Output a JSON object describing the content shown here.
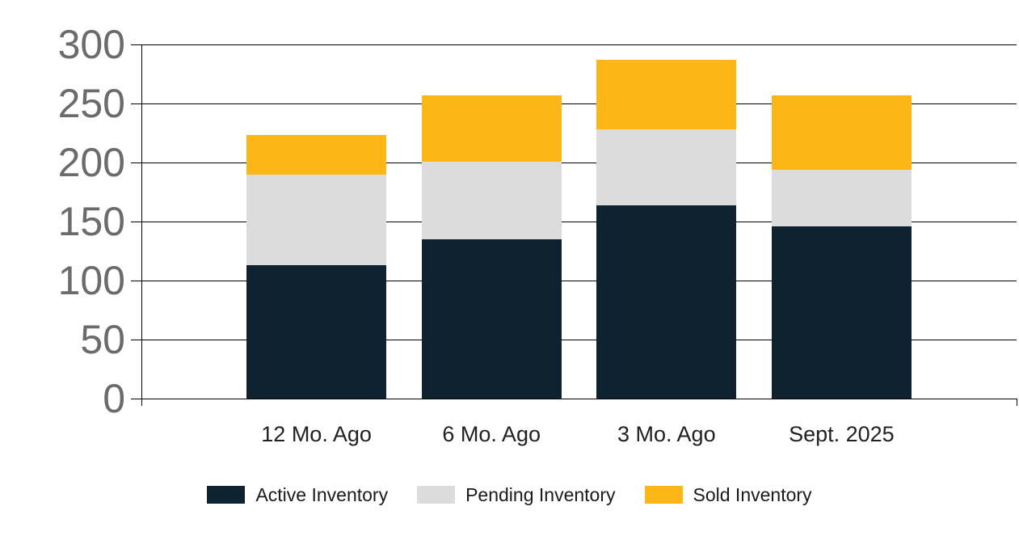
{
  "chart_data": {
    "type": "bar",
    "stacked": true,
    "title": "",
    "xlabel": "",
    "ylabel": "",
    "categories": [
      "12 Mo. Ago",
      "6 Mo. Ago",
      "3 Mo. Ago",
      "Sept. 2025"
    ],
    "series": [
      {
        "name": "Active Inventory",
        "color": "#0e2230",
        "values": [
          113,
          135,
          164,
          146
        ]
      },
      {
        "name": "Pending Inventory",
        "color": "#dcdcdc",
        "values": [
          77,
          66,
          64,
          48
        ]
      },
      {
        "name": "Sold Inventory",
        "color": "#fcb716",
        "values": [
          33,
          56,
          59,
          63
        ]
      }
    ],
    "stack_totals": [
      223,
      257,
      287,
      257
    ],
    "ylim": [
      0,
      300
    ],
    "yticks": [
      0,
      50,
      100,
      150,
      200,
      250,
      300
    ],
    "grid": true,
    "gridline_color": "#000000",
    "legend_position": "bottom",
    "colors": {
      "background": "#ffffff",
      "ytick_label": "#6b6b6b",
      "category_label": "#212121",
      "legend_text": "#1a1a1a"
    }
  }
}
